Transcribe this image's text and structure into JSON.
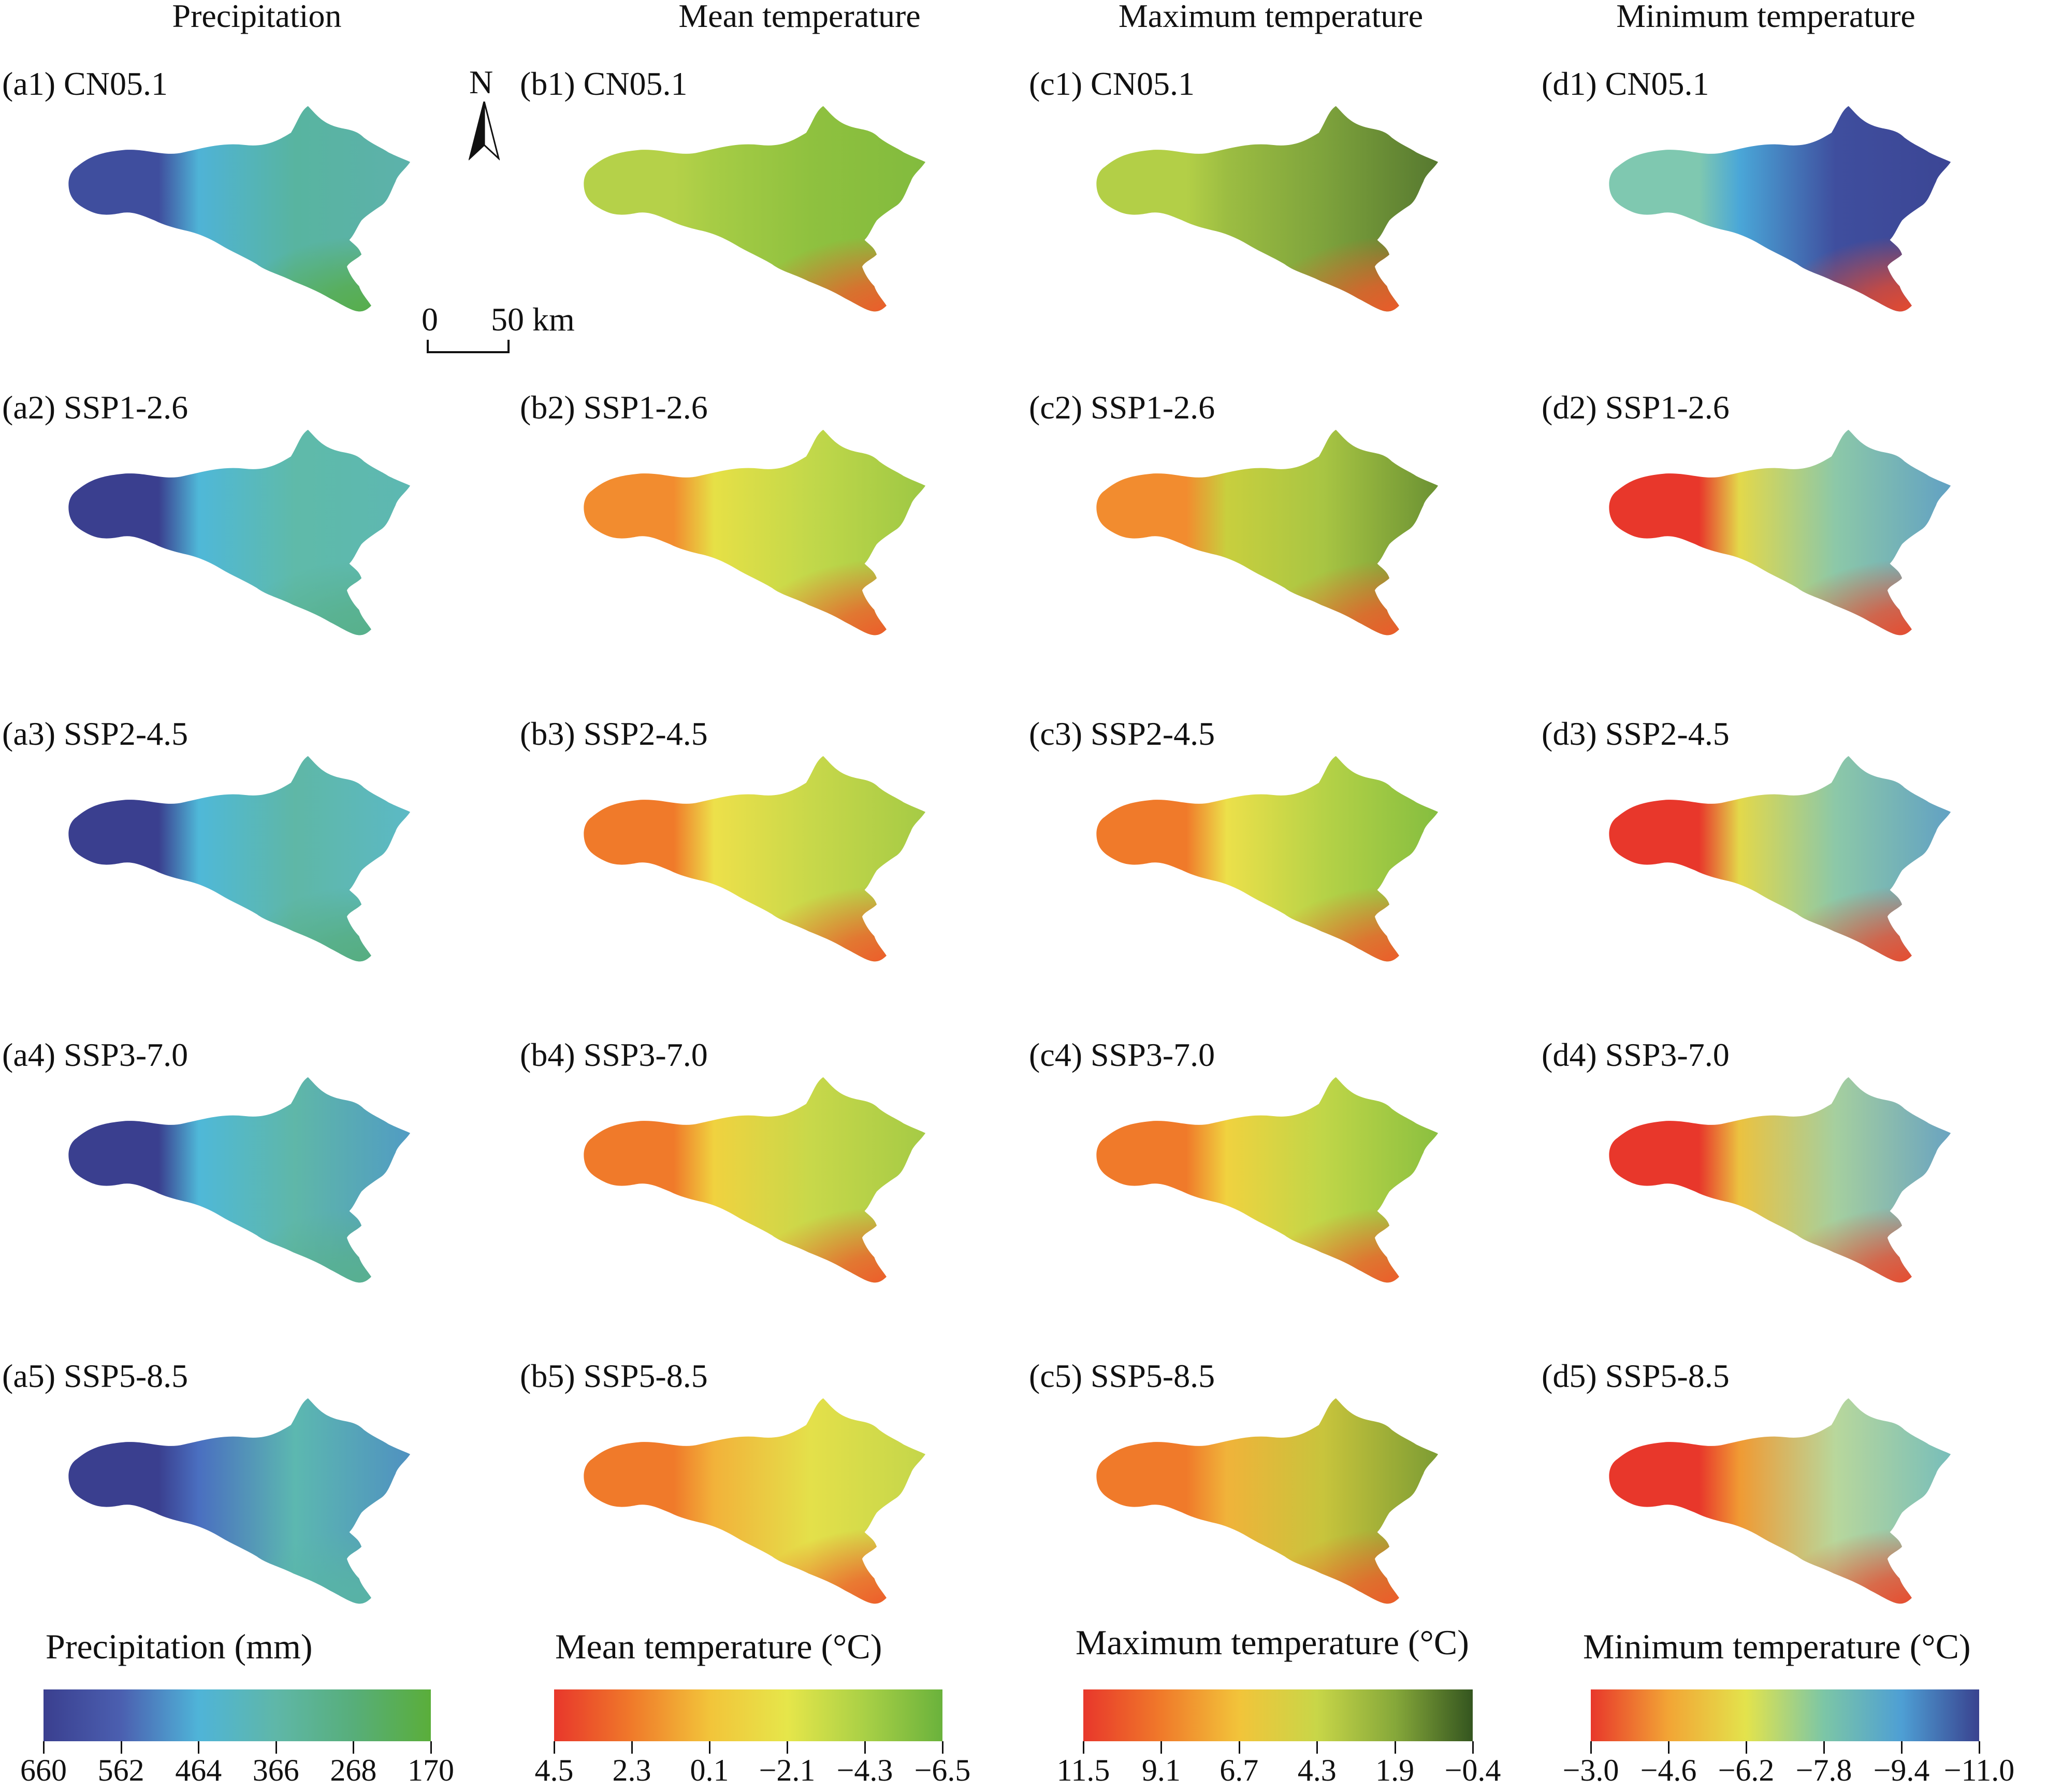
{
  "columns": [
    {
      "title": "Precipitation",
      "colorbar": "precipitation",
      "panels": [
        "(a1) CN05.1",
        "(a2) SSP1-2.6",
        "(a3) SSP2-4.5",
        "(a4) SSP3-7.0",
        "(a5) SSP5-8.5"
      ]
    },
    {
      "title": "Mean temperature",
      "colorbar": "mean_temp",
      "panels": [
        "(b1) CN05.1",
        "(b2) SSP1-2.6",
        "(b3) SSP2-4.5",
        "(b4) SSP3-7.0",
        "(b5) SSP5-8.5"
      ]
    },
    {
      "title": "Maximum temperature",
      "colorbar": "max_temp",
      "panels": [
        "(c1) CN05.1",
        "(c2) SSP1-2.6",
        "(c3) SSP2-4.5",
        "(c4) SSP3-7.0",
        "(c5) SSP5-8.5"
      ]
    },
    {
      "title": "Minimum temperature",
      "colorbar": "min_temp",
      "panels": [
        "(d1) CN05.1",
        "(d2) SSP1-2.6",
        "(d3) SSP2-4.5",
        "(d4) SSP3-7.0",
        "(d5) SSP5-8.5"
      ]
    }
  ],
  "north_arrow": {
    "label": "N",
    "icon": "north-arrow-icon"
  },
  "scale_bar": {
    "start_label": "0",
    "end_label": "50 km"
  },
  "colorbars": {
    "precipitation": {
      "title": "Precipitation (mm)",
      "ticks": [
        "660",
        "562",
        "464",
        "366",
        "268",
        "170"
      ],
      "colors": [
        "#3a3f8f",
        "#4b5fb0",
        "#4fb4d8",
        "#5fb7a8",
        "#57ae7a",
        "#5aae3a"
      ]
    },
    "mean_temp": {
      "title": "Mean temperature (°C)",
      "ticks": [
        "4.5",
        "2.3",
        "0.1",
        "−2.1",
        "−4.3",
        "−6.5"
      ],
      "colors": [
        "#e8372b",
        "#f07a2a",
        "#f2c43a",
        "#e6e64a",
        "#a9d046",
        "#6ab23c"
      ]
    },
    "max_temp": {
      "title": "Maximum temperature (°C)",
      "ticks": [
        "11.5",
        "9.1",
        "6.7",
        "4.3",
        "1.9",
        "−0.4"
      ],
      "colors": [
        "#e8372b",
        "#f07a2a",
        "#f2c43a",
        "#c8d648",
        "#86a83a",
        "#34551f"
      ]
    },
    "min_temp": {
      "title": "Minimum temperature (°C)",
      "ticks": [
        "−3.0",
        "−4.6",
        "−6.2",
        "−7.8",
        "−9.4",
        "−11.0"
      ],
      "colors": [
        "#e8372b",
        "#f2a535",
        "#e3e34c",
        "#7cc6a6",
        "#4e9fd4",
        "#39428f"
      ]
    }
  },
  "map_fields": {
    "a1": {
      "left": "#3f4e9e",
      "midleft": "#4fb3d6",
      "center": "#58b4a0",
      "right": "#5fb0b0",
      "southeast": "#57ad48"
    },
    "a2": {
      "left": "#3a3f8f",
      "midleft": "#4fb8d8",
      "center": "#5fbaa9",
      "right": "#5cb7b6",
      "southeast": "#58b08a"
    },
    "a3": {
      "left": "#3a3f8f",
      "midleft": "#4fb8d8",
      "center": "#5fb7a6",
      "right": "#5abad4",
      "southeast": "#56ad7e"
    },
    "a4": {
      "left": "#3a3f8f",
      "midleft": "#4fb8d8",
      "center": "#5fb7a8",
      "right": "#4a8fd0",
      "southeast": "#58b08e"
    },
    "a5": {
      "left": "#3a3f8f",
      "midleft": "#4a6fc0",
      "center": "#5cb8b0",
      "right": "#4a7fc8",
      "southeast": "#58b4a4"
    },
    "b1": {
      "left": "#b5d149",
      "midleft": "#a6cc45",
      "center": "#8fc13f",
      "right": "#7cb83d",
      "southeast": "#ef5a2a"
    },
    "b2": {
      "left": "#f28c2f",
      "midleft": "#e6e046",
      "center": "#c2d84a",
      "right": "#8cc041",
      "southeast": "#ef5a2a"
    },
    "b3": {
      "left": "#f07a2a",
      "midleft": "#ede04a",
      "center": "#c8d84a",
      "right": "#95c443",
      "southeast": "#ef5a2a"
    },
    "b4": {
      "left": "#f07a2a",
      "midleft": "#f0d23f",
      "center": "#c8d84a",
      "right": "#95c443",
      "southeast": "#ef5a2a"
    },
    "b5": {
      "left": "#f07a2a",
      "midleft": "#f2b23a",
      "center": "#e4e04a",
      "right": "#b5d149",
      "southeast": "#ef5a2a"
    },
    "c1": {
      "left": "#b3cf47",
      "midleft": "#9cbd42",
      "center": "#7ea33c",
      "right": "#44652a",
      "southeast": "#ef5a2a"
    },
    "c2": {
      "left": "#f28c2f",
      "midleft": "#c8cf3e",
      "center": "#a8c543",
      "right": "#4f7a2c",
      "southeast": "#ef5a2a"
    },
    "c3": {
      "left": "#f07a2a",
      "midleft": "#ece04a",
      "center": "#b6d247",
      "right": "#6eb43c",
      "southeast": "#ef5a2a"
    },
    "c4": {
      "left": "#f07a2a",
      "midleft": "#f0d23f",
      "center": "#c0d648",
      "right": "#72b53c",
      "southeast": "#ef5a2a"
    },
    "c5": {
      "left": "#f07a2a",
      "midleft": "#f0b33a",
      "center": "#c8c43c",
      "right": "#5a8a30",
      "southeast": "#ef5a2a"
    },
    "d1": {
      "left": "#7fc8b0",
      "midleft": "#4aa7d8",
      "center": "#3f4e9e",
      "right": "#3a4290",
      "southeast": "#ea4a2c"
    },
    "d2": {
      "left": "#e8372b",
      "midleft": "#e3d84a",
      "center": "#8cc8a8",
      "right": "#4e8fd0",
      "southeast": "#ea4a2c"
    },
    "d3": {
      "left": "#e8372b",
      "midleft": "#e3d84a",
      "center": "#8cc8a8",
      "right": "#4e8fd0",
      "southeast": "#ea4a2c"
    },
    "d4": {
      "left": "#e8372b",
      "midleft": "#ebc240",
      "center": "#a5cf9f",
      "right": "#4e8fd0",
      "southeast": "#ea4a2c"
    },
    "d5": {
      "left": "#e8372b",
      "midleft": "#f09a33",
      "center": "#b8d79c",
      "right": "#5ab2c8",
      "southeast": "#ea4a2c"
    }
  }
}
